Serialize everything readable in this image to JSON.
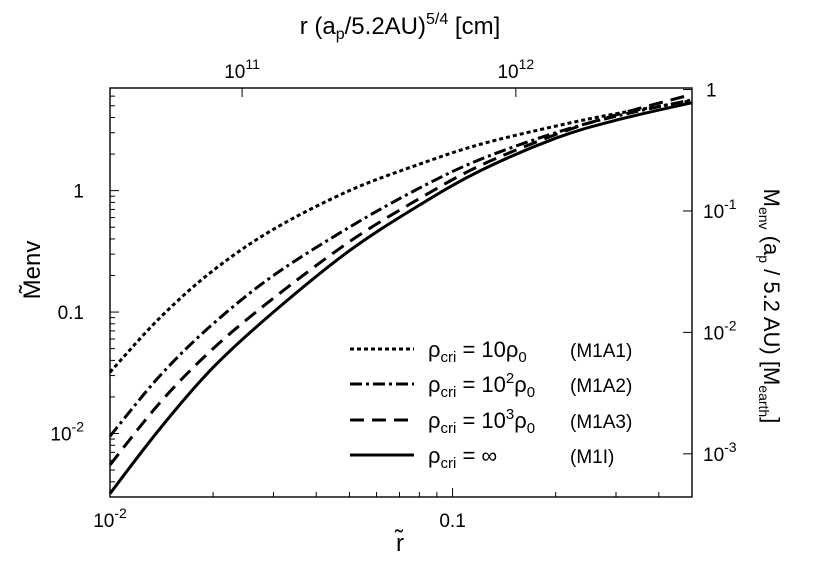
{
  "chart_data": {
    "type": "line",
    "x_scale": "log",
    "y_scale": "log",
    "xlim": [
      0.01,
      0.5
    ],
    "ylim": [
      0.003,
      7.0
    ],
    "xlabel": "r̃",
    "ylabel": "M̃env",
    "top_axis": {
      "label": "r (ap/5.2 AU)5/4 [cm]",
      "label_parts": {
        "main": "r",
        "open": " (a",
        "sub": "p",
        "mid": "/5.2",
        "unit": "AU)",
        "sup": "5/4",
        "tail": " [cm]"
      },
      "ticks": [
        {
          "value": 100000000000.0,
          "base": "10",
          "exp": "11",
          "x_data": 0.0243
        },
        {
          "value": 1000000000000.0,
          "base": "10",
          "exp": "12",
          "x_data": 0.153
        }
      ]
    },
    "right_axis": {
      "label": "Menv (ap / 5.2 AU) [Mearth]",
      "label_parts": {
        "m": "M",
        "env": "env",
        "open": " (a",
        "p": "p",
        "mid": " / 5.2 AU) [M",
        "earth": "earth",
        "close": "]"
      },
      "ticks": [
        {
          "text": "1",
          "y_data": 6.8
        },
        {
          "base": "10",
          "exp": "-1",
          "y_data": 0.68
        },
        {
          "base": "10",
          "exp": "-2",
          "y_data": 0.068
        },
        {
          "base": "10",
          "exp": "-3",
          "y_data": 0.0068
        }
      ]
    },
    "x_ticks": [
      {
        "value": 0.01,
        "base": "10",
        "exp": "-2"
      },
      {
        "value": 0.1,
        "text": "0.1"
      }
    ],
    "y_ticks": [
      {
        "value": 1,
        "text": "1"
      },
      {
        "value": 0.1,
        "text": "0.1"
      },
      {
        "value": 0.01,
        "base": "10",
        "exp": "-2"
      }
    ],
    "series": [
      {
        "name": "ρcri = 10ρ0 (M1A1)",
        "dash": "dotted",
        "x": [
          0.01,
          0.014,
          0.02,
          0.03,
          0.05,
          0.08,
          0.12,
          0.2,
          0.3,
          0.5
        ],
        "y": [
          0.032,
          0.09,
          0.22,
          0.48,
          1.0,
          1.65,
          2.4,
          3.4,
          4.3,
          5.5
        ]
      },
      {
        "name": "ρcri = 10²ρ0 (M1A2)",
        "dash": "dashdot",
        "x": [
          0.01,
          0.014,
          0.02,
          0.03,
          0.05,
          0.08,
          0.12,
          0.2,
          0.3,
          0.5
        ],
        "y": [
          0.0095,
          0.03,
          0.08,
          0.2,
          0.5,
          1.05,
          1.8,
          3.0,
          4.1,
          5.6
        ]
      },
      {
        "name": "ρcri = 10³ρ0 (M1A3)",
        "dash": "dashed",
        "x": [
          0.01,
          0.014,
          0.02,
          0.03,
          0.05,
          0.08,
          0.12,
          0.2,
          0.3,
          0.5
        ],
        "y": [
          0.0055,
          0.018,
          0.05,
          0.13,
          0.38,
          0.86,
          1.6,
          2.9,
          4.2,
          6.2
        ]
      },
      {
        "name": "ρcri = ∞ (M1I)",
        "dash": "solid",
        "x": [
          0.01,
          0.014,
          0.02,
          0.03,
          0.05,
          0.08,
          0.12,
          0.2,
          0.3,
          0.5
        ],
        "y": [
          0.0032,
          0.011,
          0.035,
          0.1,
          0.32,
          0.76,
          1.45,
          2.7,
          3.8,
          5.3
        ]
      }
    ],
    "legend": {
      "placement": "lower-right",
      "entries": [
        {
          "rho": "ρ",
          "cri": "cri",
          "eq": " = 10",
          "pow": "",
          "rho0": "ρ",
          "zero": "0",
          "tag": "(M1A1)"
        },
        {
          "rho": "ρ",
          "cri": "cri",
          "eq": " = 10",
          "pow": "2",
          "rho0": "ρ",
          "zero": "0",
          "tag": "(M1A2)"
        },
        {
          "rho": "ρ",
          "cri": "cri",
          "eq": " = 10",
          "pow": "3",
          "rho0": "ρ",
          "zero": "0",
          "tag": "(M1A3)"
        },
        {
          "rho": "ρ",
          "cri": "cri",
          "eq": " = ∞",
          "pow": "",
          "rho0": "",
          "zero": "",
          "tag": "(M1I)"
        }
      ]
    }
  }
}
